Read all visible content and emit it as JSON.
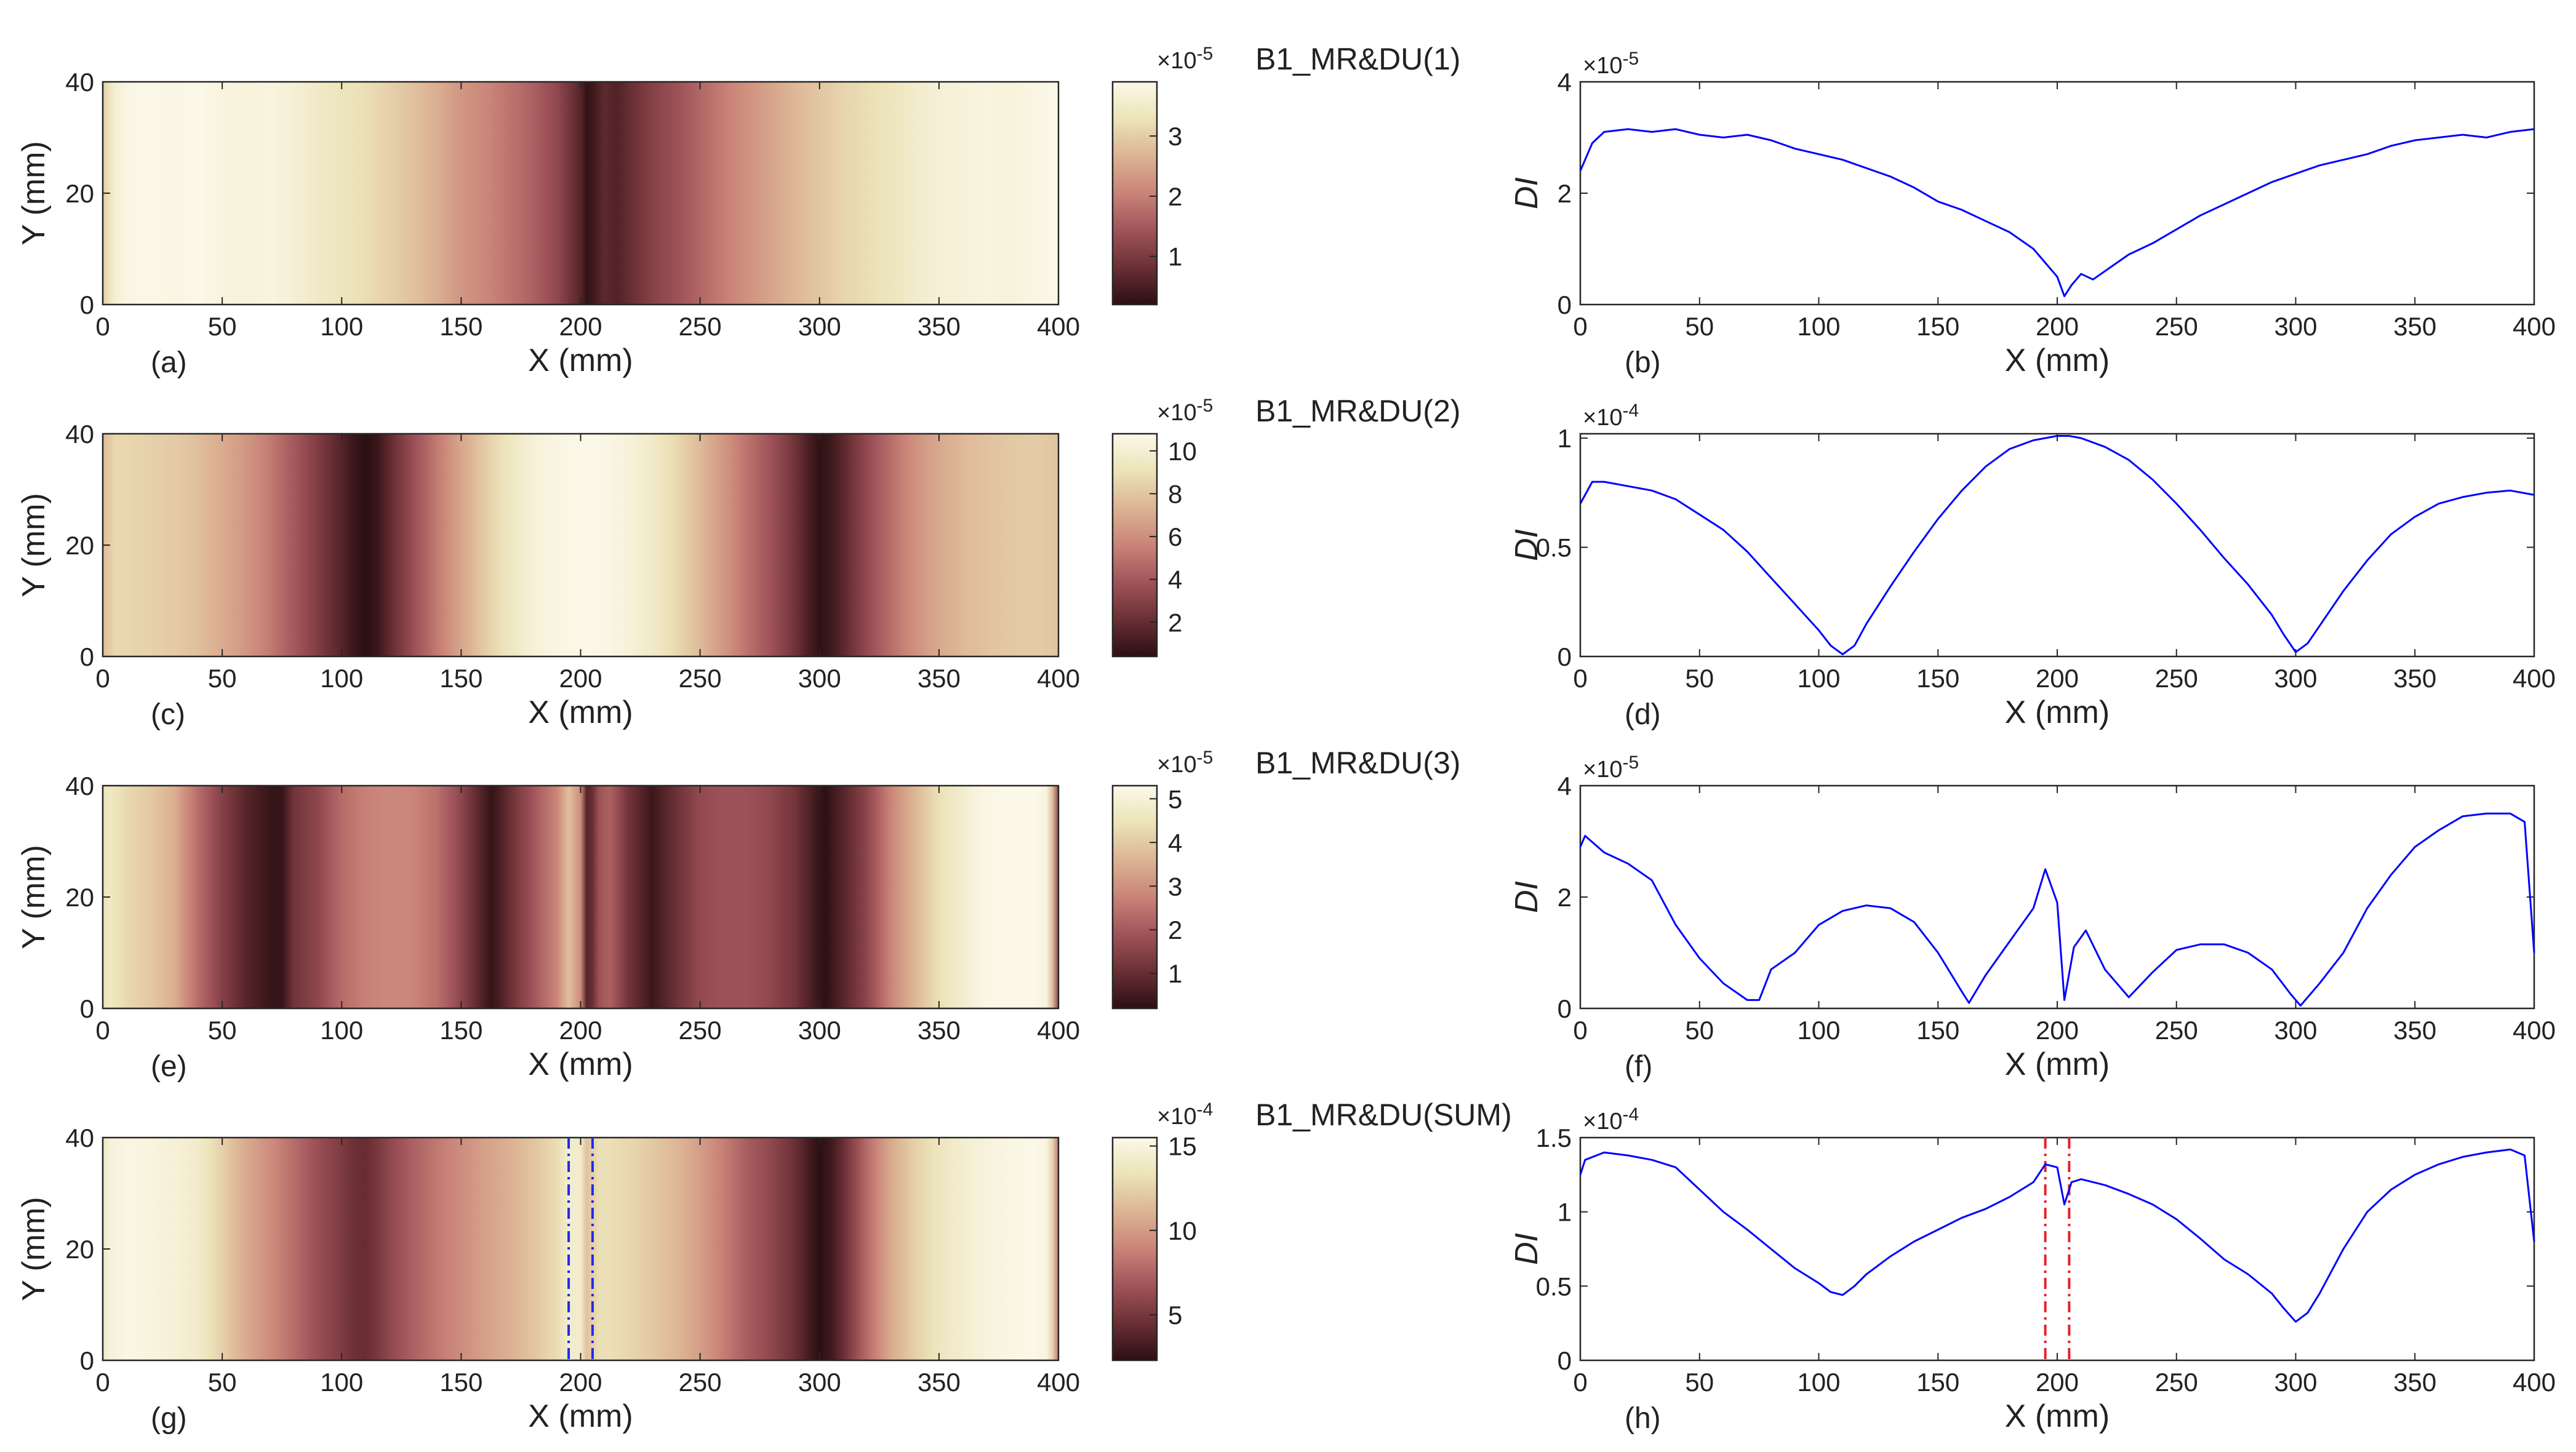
{
  "colors": {
    "line": "#0000ff",
    "axis": "#262626",
    "marker_blue": "#1f2be8",
    "marker_red": "#e8202a",
    "cmap": [
      "#2b0f12",
      "#6a2f35",
      "#a0545a",
      "#c98377",
      "#dcb394",
      "#ece3b9",
      "#fbf8e8"
    ]
  },
  "chart_data": [
    {
      "type": "heatmap",
      "panel_label": "(a)",
      "title": "B1_MR&DU(1)",
      "xlabel": "X (mm)",
      "ylabel": "Y (mm)",
      "xlim": [
        0,
        400
      ],
      "ylim": [
        0,
        40
      ],
      "xticks": [
        "0",
        "50",
        "100",
        "150",
        "200",
        "250",
        "300",
        "350",
        "400"
      ],
      "yticks": [
        "0",
        "20",
        "40"
      ],
      "colorbar": {
        "exponent_base": "×10",
        "exponent": "-5",
        "ticks": [
          "1",
          "2",
          "3"
        ],
        "tick_values": [
          1,
          2,
          3
        ],
        "range": [
          0.2,
          3.9
        ]
      },
      "profile_ref": "profile-b"
    },
    {
      "type": "line",
      "panel_label": "(b)",
      "xlabel": "X (mm)",
      "ylabel": "DI",
      "xlim": [
        0,
        400
      ],
      "ylim": [
        0,
        4
      ],
      "exponent_base": "×10",
      "exponent": "-5",
      "xticks": [
        "0",
        "50",
        "100",
        "150",
        "200",
        "250",
        "300",
        "350",
        "400"
      ],
      "yticks": [
        "0",
        "2",
        "4"
      ],
      "ytick_values": [
        0,
        2,
        4
      ],
      "x": [
        0,
        5,
        10,
        20,
        30,
        40,
        50,
        60,
        70,
        80,
        90,
        100,
        110,
        120,
        130,
        140,
        150,
        160,
        170,
        180,
        190,
        195,
        200,
        203,
        206,
        210,
        215,
        220,
        225,
        230,
        240,
        250,
        260,
        270,
        280,
        290,
        300,
        310,
        320,
        330,
        340,
        350,
        360,
        370,
        380,
        390,
        400
      ],
      "values": [
        2.4,
        2.9,
        3.1,
        3.15,
        3.1,
        3.15,
        3.05,
        3.0,
        3.05,
        2.95,
        2.8,
        2.7,
        2.6,
        2.45,
        2.3,
        2.1,
        1.85,
        1.7,
        1.5,
        1.3,
        1.0,
        0.75,
        0.5,
        0.15,
        0.35,
        0.55,
        0.45,
        0.6,
        0.75,
        0.9,
        1.1,
        1.35,
        1.6,
        1.8,
        2.0,
        2.2,
        2.35,
        2.5,
        2.6,
        2.7,
        2.85,
        2.95,
        3.0,
        3.05,
        3.0,
        3.1,
        3.15
      ]
    },
    {
      "type": "heatmap",
      "panel_label": "(c)",
      "title": "B1_MR&DU(2)",
      "xlabel": "X (mm)",
      "ylabel": "Y (mm)",
      "xlim": [
        0,
        400
      ],
      "ylim": [
        0,
        40
      ],
      "xticks": [
        "0",
        "50",
        "100",
        "150",
        "200",
        "250",
        "300",
        "350",
        "400"
      ],
      "yticks": [
        "0",
        "20",
        "40"
      ],
      "colorbar": {
        "exponent_base": "×10",
        "exponent": "-5",
        "ticks": [
          "2",
          "4",
          "6",
          "8",
          "10"
        ],
        "tick_values": [
          2,
          4,
          6,
          8,
          10
        ],
        "range": [
          0.4,
          10.8
        ]
      },
      "profile_ref": "profile-d"
    },
    {
      "type": "line",
      "panel_label": "(d)",
      "xlabel": "X (mm)",
      "ylabel": "DI",
      "xlim": [
        0,
        400
      ],
      "ylim": [
        0,
        1.02
      ],
      "exponent_base": "×10",
      "exponent": "-4",
      "xticks": [
        "0",
        "50",
        "100",
        "150",
        "200",
        "250",
        "300",
        "350",
        "400"
      ],
      "yticks": [
        "0",
        "0.5",
        "1"
      ],
      "ytick_values": [
        0,
        0.5,
        1
      ],
      "x": [
        0,
        5,
        10,
        20,
        30,
        40,
        50,
        60,
        70,
        80,
        90,
        100,
        105,
        110,
        115,
        120,
        130,
        140,
        150,
        160,
        170,
        180,
        190,
        200,
        205,
        210,
        220,
        230,
        240,
        250,
        260,
        270,
        280,
        290,
        295,
        300,
        305,
        310,
        320,
        330,
        340,
        350,
        360,
        370,
        380,
        390,
        400
      ],
      "values": [
        0.7,
        0.8,
        0.8,
        0.78,
        0.76,
        0.72,
        0.65,
        0.58,
        0.48,
        0.36,
        0.24,
        0.12,
        0.05,
        0.01,
        0.05,
        0.15,
        0.32,
        0.48,
        0.63,
        0.76,
        0.87,
        0.95,
        0.99,
        1.01,
        1.01,
        1.0,
        0.96,
        0.9,
        0.81,
        0.7,
        0.58,
        0.45,
        0.33,
        0.19,
        0.1,
        0.02,
        0.06,
        0.14,
        0.3,
        0.44,
        0.56,
        0.64,
        0.7,
        0.73,
        0.75,
        0.76,
        0.74
      ]
    },
    {
      "type": "heatmap",
      "panel_label": "(e)",
      "title": "B1_MR&DU(3)",
      "xlabel": "X (mm)",
      "ylabel": "Y (mm)",
      "xlim": [
        0,
        400
      ],
      "ylim": [
        0,
        40
      ],
      "xticks": [
        "0",
        "50",
        "100",
        "150",
        "200",
        "250",
        "300",
        "350",
        "400"
      ],
      "yticks": [
        "0",
        "20",
        "40"
      ],
      "colorbar": {
        "exponent_base": "×10",
        "exponent": "-5",
        "ticks": [
          "1",
          "2",
          "3",
          "4",
          "5"
        ],
        "tick_values": [
          1,
          2,
          3,
          4,
          5
        ],
        "range": [
          0.2,
          5.3
        ]
      },
      "profile_ref": "profile-f"
    },
    {
      "type": "line",
      "panel_label": "(f)",
      "xlabel": "X (mm)",
      "ylabel": "DI",
      "xlim": [
        0,
        400
      ],
      "ylim": [
        0,
        4
      ],
      "exponent_base": "×10",
      "exponent": "-5",
      "xticks": [
        "0",
        "50",
        "100",
        "150",
        "200",
        "250",
        "300",
        "350",
        "400"
      ],
      "yticks": [
        "0",
        "2",
        "4"
      ],
      "ytick_values": [
        0,
        2,
        4
      ],
      "x": [
        0,
        2,
        10,
        20,
        30,
        40,
        50,
        60,
        70,
        75,
        80,
        90,
        100,
        110,
        120,
        130,
        140,
        150,
        160,
        163,
        170,
        180,
        190,
        195,
        200,
        203,
        207,
        212,
        220,
        230,
        240,
        250,
        260,
        270,
        280,
        290,
        298,
        302,
        310,
        320,
        330,
        340,
        350,
        360,
        370,
        380,
        390,
        396,
        400
      ],
      "values": [
        2.9,
        3.1,
        2.8,
        2.6,
        2.3,
        1.5,
        0.9,
        0.45,
        0.15,
        0.15,
        0.7,
        1.0,
        1.5,
        1.75,
        1.85,
        1.8,
        1.55,
        1.0,
        0.3,
        0.1,
        0.6,
        1.2,
        1.8,
        2.5,
        1.9,
        0.15,
        1.1,
        1.4,
        0.7,
        0.2,
        0.65,
        1.05,
        1.15,
        1.15,
        1.0,
        0.7,
        0.25,
        0.05,
        0.45,
        1.0,
        1.8,
        2.4,
        2.9,
        3.2,
        3.45,
        3.5,
        3.5,
        3.35,
        1.0
      ]
    },
    {
      "type": "heatmap",
      "panel_label": "(g)",
      "title": "B1_MR&DU(SUM)",
      "xlabel": "X (mm)",
      "ylabel": "Y (mm)",
      "xlim": [
        0,
        400
      ],
      "ylim": [
        0,
        40
      ],
      "xticks": [
        "0",
        "50",
        "100",
        "150",
        "200",
        "250",
        "300",
        "350",
        "400"
      ],
      "yticks": [
        "0",
        "20",
        "40"
      ],
      "colorbar": {
        "exponent_base": "×10",
        "exponent": "-4",
        "ticks": [
          "5",
          "10",
          "15"
        ],
        "tick_values": [
          5,
          10,
          15
        ],
        "range": [
          2.3,
          15.5
        ]
      },
      "marker_lines_x": [
        195,
        205
      ],
      "profile_ref": "profile-h"
    },
    {
      "type": "line",
      "panel_label": "(h)",
      "xlabel": "X (mm)",
      "ylabel": "DI",
      "xlim": [
        0,
        400
      ],
      "ylim": [
        0,
        1.5
      ],
      "exponent_base": "×10",
      "exponent": "-4",
      "xticks": [
        "0",
        "50",
        "100",
        "150",
        "200",
        "250",
        "300",
        "350",
        "400"
      ],
      "yticks": [
        "0",
        "0.5",
        "1",
        "1.5"
      ],
      "ytick_values": [
        0,
        0.5,
        1,
        1.5
      ],
      "marker_lines_x": [
        195,
        205
      ],
      "x": [
        0,
        2,
        10,
        20,
        30,
        40,
        50,
        60,
        70,
        80,
        90,
        100,
        105,
        110,
        115,
        120,
        130,
        140,
        150,
        160,
        170,
        180,
        190,
        195,
        200,
        203,
        206,
        210,
        220,
        230,
        240,
        250,
        260,
        270,
        280,
        290,
        295,
        300,
        305,
        310,
        320,
        330,
        340,
        350,
        360,
        370,
        380,
        390,
        396,
        400
      ],
      "values": [
        1.25,
        1.35,
        1.4,
        1.38,
        1.35,
        1.3,
        1.15,
        1.0,
        0.88,
        0.75,
        0.62,
        0.52,
        0.46,
        0.44,
        0.5,
        0.58,
        0.7,
        0.8,
        0.88,
        0.96,
        1.02,
        1.1,
        1.2,
        1.32,
        1.3,
        1.05,
        1.2,
        1.22,
        1.18,
        1.12,
        1.05,
        0.95,
        0.82,
        0.68,
        0.58,
        0.45,
        0.35,
        0.26,
        0.32,
        0.45,
        0.75,
        1.0,
        1.15,
        1.25,
        1.32,
        1.37,
        1.4,
        1.42,
        1.38,
        0.8
      ]
    }
  ]
}
